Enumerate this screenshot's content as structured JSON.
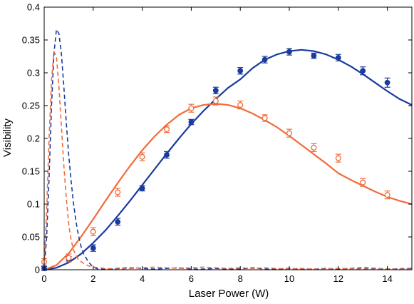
{
  "chart_data": {
    "type": "scatter",
    "title": "",
    "xlabel": "Laser Power (W)",
    "ylabel": "Visibility",
    "xlim": [
      0,
      15
    ],
    "ylim": [
      0,
      0.4
    ],
    "xticks": [
      0,
      2,
      4,
      6,
      8,
      10,
      12,
      14
    ],
    "xtick_labels": [
      "0",
      "2",
      "4",
      "6",
      "8",
      "10",
      "12",
      "14"
    ],
    "yticks": [
      0,
      0.05,
      0.1,
      0.15,
      0.2,
      0.25,
      0.3,
      0.35,
      0.4
    ],
    "ytick_labels": [
      "0",
      "0.05",
      "0.1",
      "0.15",
      "0.2",
      "0.25",
      "0.3",
      "0.35",
      "0.4"
    ],
    "grid": false,
    "legend": "none",
    "series": [
      {
        "kind": "points",
        "marker": "filled-circle",
        "color": "#1a3a9c",
        "x": [
          0,
          1,
          2,
          3,
          4,
          5,
          6,
          7,
          8,
          9,
          10,
          11,
          12,
          13,
          14
        ],
        "y": [
          0.002,
          0.016,
          0.033,
          0.073,
          0.124,
          0.175,
          0.225,
          0.273,
          0.303,
          0.32,
          0.332,
          0.326,
          0.323,
          0.303,
          0.285
        ],
        "err": [
          0.003,
          0.004,
          0.005,
          0.005,
          0.004,
          0.005,
          0.004,
          0.005,
          0.005,
          0.005,
          0.005,
          0.004,
          0.005,
          0.006,
          0.007
        ]
      },
      {
        "kind": "points",
        "marker": "open-circle",
        "color": "#f26b3a",
        "x": [
          0,
          1,
          2,
          3,
          4,
          5,
          6,
          7,
          8,
          9,
          10,
          11,
          12,
          13,
          14
        ],
        "y": [
          0.012,
          0.018,
          0.058,
          0.118,
          0.172,
          0.214,
          0.246,
          0.257,
          0.251,
          0.231,
          0.208,
          0.186,
          0.17,
          0.133,
          0.114
        ],
        "err": [
          0.005,
          0.006,
          0.006,
          0.006,
          0.006,
          0.005,
          0.006,
          0.006,
          0.006,
          0.005,
          0.006,
          0.006,
          0.006,
          0.006,
          0.006
        ]
      },
      {
        "kind": "line",
        "style": "solid",
        "color": "#1a3a9c",
        "x": [
          0,
          0.5,
          1,
          1.5,
          2,
          2.5,
          3,
          3.5,
          4,
          4.5,
          5,
          5.5,
          6,
          6.5,
          7,
          7.5,
          8,
          8.5,
          9,
          9.5,
          10,
          10.5,
          11,
          11.5,
          12,
          12.5,
          13,
          13.5,
          14,
          14.5,
          15
        ],
        "y": [
          0,
          0.003,
          0.011,
          0.024,
          0.041,
          0.06,
          0.082,
          0.105,
          0.129,
          0.153,
          0.177,
          0.2,
          0.222,
          0.242,
          0.26,
          0.277,
          0.29,
          0.307,
          0.32,
          0.328,
          0.333,
          0.335,
          0.333,
          0.328,
          0.32,
          0.31,
          0.298,
          0.285,
          0.272,
          0.26,
          0.251
        ]
      },
      {
        "kind": "line",
        "style": "solid",
        "color": "#f26b3a",
        "x": [
          0,
          0.5,
          1,
          1.5,
          2,
          2.5,
          3,
          3.5,
          4,
          4.5,
          5,
          5.5,
          6,
          6.5,
          7,
          7.5,
          8,
          8.5,
          9,
          9.5,
          10,
          10.5,
          11,
          11.5,
          12,
          12.5,
          13,
          13.5,
          14,
          14.5,
          15
        ],
        "y": [
          0,
          0.007,
          0.025,
          0.05,
          0.077,
          0.105,
          0.132,
          0.158,
          0.182,
          0.203,
          0.221,
          0.236,
          0.246,
          0.251,
          0.253,
          0.251,
          0.246,
          0.238,
          0.228,
          0.217,
          0.204,
          0.19,
          0.176,
          0.162,
          0.147,
          0.137,
          0.128,
          0.119,
          0.111,
          0.105,
          0.1
        ]
      },
      {
        "kind": "line",
        "style": "dashed",
        "color": "#1a3a9c",
        "x": [
          0,
          0.1,
          0.2,
          0.3,
          0.4,
          0.5,
          0.6,
          0.7,
          0.8,
          0.9,
          1,
          1.1,
          1.2,
          1.3,
          1.4,
          1.5,
          1.6,
          1.8,
          2,
          2.2,
          2.5,
          3,
          3.5,
          4,
          4.5,
          5,
          5.5,
          6,
          6.5,
          7,
          7.5,
          8,
          8.5,
          9,
          9.5,
          10,
          10.5,
          11,
          11.5,
          12,
          13,
          14,
          15
        ],
        "y": [
          0,
          0.05,
          0.14,
          0.25,
          0.33,
          0.366,
          0.36,
          0.33,
          0.28,
          0.225,
          0.175,
          0.135,
          0.1,
          0.073,
          0.052,
          0.036,
          0.025,
          0.012,
          0.004,
          0.001,
          0.001,
          0.002,
          0.003,
          0.002,
          0.001,
          0.002,
          0.003,
          0.001,
          0.001,
          0.002,
          0.001,
          0.001,
          0.003,
          0.001,
          0.001,
          0.002,
          0.001,
          0.001,
          0.002,
          0.001,
          0.003,
          0.001,
          0.002
        ]
      },
      {
        "kind": "line",
        "style": "dashed",
        "color": "#f26b3a",
        "x": [
          0,
          0.1,
          0.2,
          0.3,
          0.4,
          0.5,
          0.6,
          0.7,
          0.8,
          0.9,
          1,
          1.1,
          1.2,
          1.3,
          1.4,
          1.6,
          1.8,
          2,
          2.5,
          3,
          3.5,
          4,
          4.5,
          5,
          5.5,
          6,
          6.5,
          7,
          7.5,
          8,
          8.5,
          9,
          9.5,
          10,
          10.5,
          11,
          11.5,
          12,
          13,
          14,
          15
        ],
        "y": [
          0.005,
          0.09,
          0.2,
          0.29,
          0.332,
          0.325,
          0.28,
          0.22,
          0.16,
          0.11,
          0.07,
          0.045,
          0.03,
          0.022,
          0.015,
          0.01,
          0.006,
          0.004,
          0.002,
          0.001,
          0.002,
          0.003,
          0.004,
          0.003,
          0.002,
          0.003,
          0.004,
          0.003,
          0.002,
          0.003,
          0.002,
          0.003,
          0.002,
          0.001,
          0.002,
          0.001,
          0.001,
          0.002,
          0.001,
          0.001,
          0.001
        ]
      }
    ]
  }
}
